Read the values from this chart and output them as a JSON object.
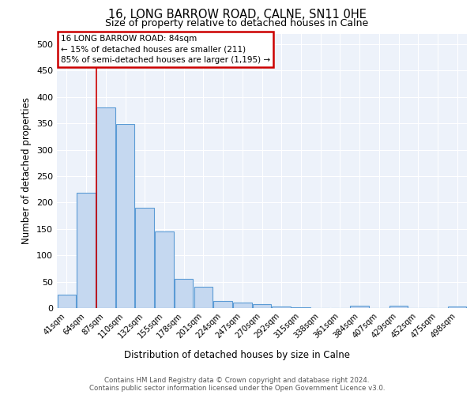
{
  "title1": "16, LONG BARROW ROAD, CALNE, SN11 0HE",
  "title2": "Size of property relative to detached houses in Calne",
  "xlabel": "Distribution of detached houses by size in Calne",
  "ylabel": "Number of detached properties",
  "bar_labels": [
    "41sqm",
    "64sqm",
    "87sqm",
    "110sqm",
    "132sqm",
    "155sqm",
    "178sqm",
    "201sqm",
    "224sqm",
    "247sqm",
    "270sqm",
    "292sqm",
    "315sqm",
    "338sqm",
    "361sqm",
    "384sqm",
    "407sqm",
    "429sqm",
    "452sqm",
    "475sqm",
    "498sqm"
  ],
  "bar_values": [
    25,
    218,
    380,
    348,
    190,
    145,
    55,
    40,
    13,
    10,
    7,
    3,
    2,
    0,
    0,
    4,
    0,
    4,
    0,
    0,
    3
  ],
  "bar_color": "#c5d8f0",
  "bar_edgecolor": "#5b9bd5",
  "vline_index": 2,
  "vline_color": "#cc0000",
  "annotation_title": "16 LONG BARROW ROAD: 84sqm",
  "annotation_line1": "← 15% of detached houses are smaller (211)",
  "annotation_line2": "85% of semi-detached houses are larger (1,195) →",
  "annotation_box_color": "#cc0000",
  "ylim": [
    0,
    520
  ],
  "yticks": [
    0,
    50,
    100,
    150,
    200,
    250,
    300,
    350,
    400,
    450,
    500
  ],
  "footer1": "Contains HM Land Registry data © Crown copyright and database right 2024.",
  "footer2": "Contains public sector information licensed under the Open Government Licence v3.0.",
  "bg_color": "#edf2fa"
}
